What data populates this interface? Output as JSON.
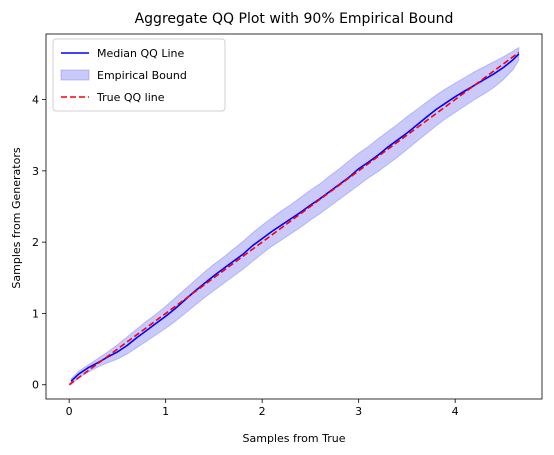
{
  "chart_data": {
    "type": "line",
    "title": "Aggregate QQ Plot with  90% Empirical Bound",
    "xlabel": "Samples from True",
    "ylabel": "Samples from Generators",
    "xlim": [
      -0.24,
      4.9
    ],
    "ylim": [
      -0.2,
      4.92
    ],
    "xticks": [
      0,
      1,
      2,
      3,
      4
    ],
    "yticks": [
      0,
      1,
      2,
      3,
      4
    ],
    "grid": false,
    "legend_position": "top-left",
    "series": [
      {
        "name": "Median QQ Line",
        "kind": "line",
        "color": "#0000ff",
        "x": [
          0.02,
          0.1,
          0.2,
          0.3,
          0.4,
          0.5,
          0.6,
          0.7,
          0.8,
          0.9,
          1.0,
          1.1,
          1.2,
          1.3,
          1.4,
          1.5,
          1.6,
          1.7,
          1.8,
          1.9,
          2.0,
          2.1,
          2.2,
          2.3,
          2.4,
          2.5,
          2.6,
          2.7,
          2.8,
          2.9,
          3.0,
          3.1,
          3.2,
          3.3,
          3.4,
          3.5,
          3.6,
          3.7,
          3.8,
          3.9,
          4.0,
          4.1,
          4.2,
          4.3,
          4.4,
          4.5,
          4.6,
          4.66
        ],
        "y": [
          0.05,
          0.15,
          0.24,
          0.31,
          0.39,
          0.46,
          0.55,
          0.66,
          0.76,
          0.86,
          0.96,
          1.07,
          1.19,
          1.31,
          1.42,
          1.53,
          1.63,
          1.73,
          1.83,
          1.95,
          2.05,
          2.15,
          2.24,
          2.33,
          2.42,
          2.52,
          2.61,
          2.71,
          2.81,
          2.91,
          3.03,
          3.12,
          3.22,
          3.33,
          3.43,
          3.53,
          3.64,
          3.75,
          3.86,
          3.95,
          4.04,
          4.12,
          4.2,
          4.28,
          4.36,
          4.45,
          4.56,
          4.64
        ]
      },
      {
        "name": "Empirical Bound",
        "kind": "band",
        "color": "#5050f0",
        "x": [
          0.02,
          0.1,
          0.2,
          0.3,
          0.4,
          0.5,
          0.6,
          0.7,
          0.8,
          0.9,
          1.0,
          1.1,
          1.2,
          1.3,
          1.4,
          1.5,
          1.6,
          1.7,
          1.8,
          1.9,
          2.0,
          2.1,
          2.2,
          2.3,
          2.4,
          2.5,
          2.6,
          2.7,
          2.8,
          2.9,
          3.0,
          3.1,
          3.2,
          3.3,
          3.4,
          3.5,
          3.6,
          3.7,
          3.8,
          3.9,
          4.0,
          4.1,
          4.2,
          4.3,
          4.4,
          4.5,
          4.6,
          4.66
        ],
        "lower": [
          0.0,
          0.1,
          0.18,
          0.25,
          0.31,
          0.36,
          0.43,
          0.52,
          0.61,
          0.7,
          0.79,
          0.89,
          1.0,
          1.11,
          1.22,
          1.32,
          1.42,
          1.52,
          1.62,
          1.73,
          1.84,
          1.94,
          2.03,
          2.12,
          2.21,
          2.31,
          2.4,
          2.5,
          2.6,
          2.7,
          2.8,
          2.9,
          2.99,
          3.09,
          3.19,
          3.3,
          3.41,
          3.52,
          3.63,
          3.73,
          3.82,
          3.91,
          4.0,
          4.08,
          4.17,
          4.28,
          4.42,
          4.55
        ],
        "upper": [
          0.08,
          0.19,
          0.28,
          0.37,
          0.46,
          0.56,
          0.67,
          0.78,
          0.89,
          0.99,
          1.1,
          1.22,
          1.34,
          1.46,
          1.58,
          1.69,
          1.79,
          1.9,
          2.01,
          2.13,
          2.24,
          2.34,
          2.44,
          2.53,
          2.63,
          2.73,
          2.82,
          2.93,
          3.03,
          3.14,
          3.25,
          3.34,
          3.45,
          3.55,
          3.65,
          3.76,
          3.86,
          3.96,
          4.06,
          4.15,
          4.23,
          4.31,
          4.39,
          4.46,
          4.53,
          4.6,
          4.68,
          4.73
        ]
      },
      {
        "name": "True QQ line",
        "kind": "dashed-line",
        "color": "#ff0000",
        "x": [
          0.0,
          4.66
        ],
        "y": [
          0.0,
          4.66
        ]
      }
    ]
  }
}
